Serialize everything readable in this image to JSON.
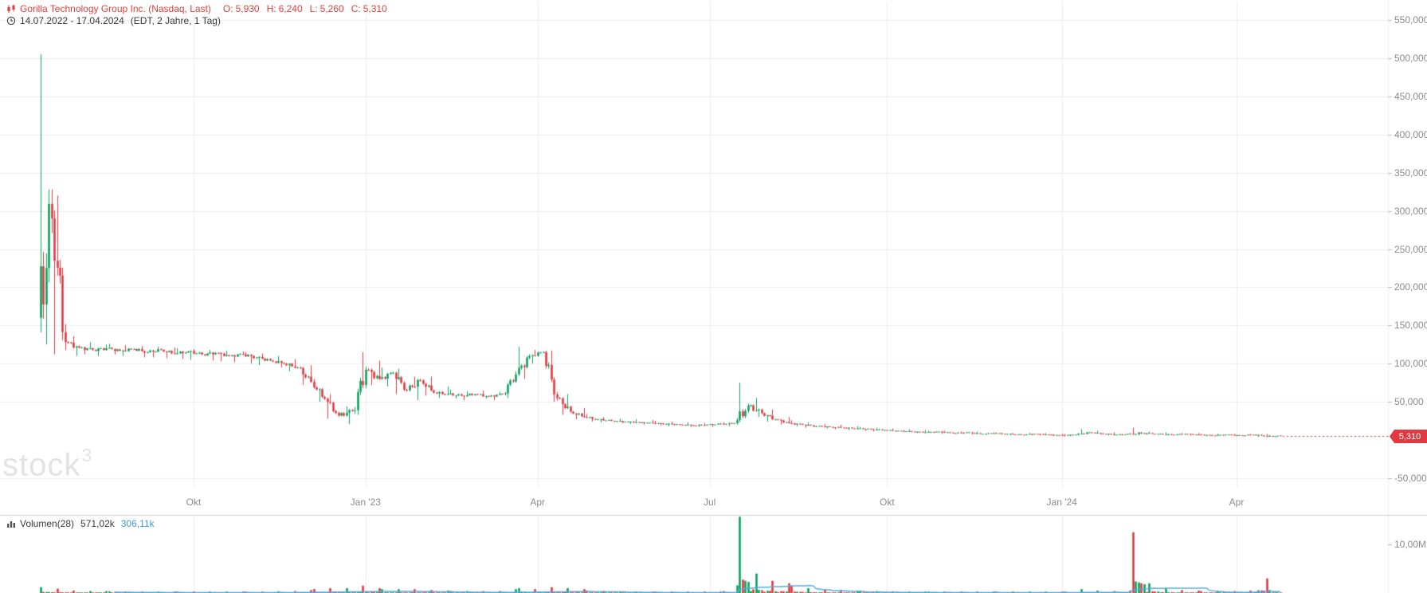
{
  "header": {
    "instrument": "Gorilla Technology Group Inc. (Nasdaq, Last)",
    "ohlc": [
      {
        "k": "O:",
        "v": "5,930"
      },
      {
        "k": "H:",
        "v": "6,240"
      },
      {
        "k": "L:",
        "v": "5,260"
      },
      {
        "k": "C:",
        "v": "5,310"
      }
    ],
    "date_range": "14.07.2022 - 17.04.2024",
    "timeframe": "(EDT, 2 Jahre, 1 Tag)"
  },
  "watermark": {
    "text": "stock",
    "sup": "3"
  },
  "price_axis": {
    "labels": [
      "550,000",
      "500,000",
      "450,000",
      "400,000",
      "350,000",
      "300,000",
      "250,000",
      "200,000",
      "150,000",
      "100,000",
      "50,000",
      "-50,000"
    ],
    "last_price": "5,310"
  },
  "volume_panel": {
    "label": "Volumen(28)",
    "value": "571,02k",
    "ma_value": "306,11k",
    "axis_label": "10,00M"
  },
  "icons": {
    "instrument": "candlestick-icon",
    "range": "clock-icon",
    "volume": "bar-chart-icon"
  },
  "colors": {
    "up": "#0ba05f",
    "down": "#e0393f",
    "last_price_badge": "#e0393f",
    "volume_ma_line": "#55aae2",
    "legend_instrument": "#e0403c",
    "ma_value_text": "#3d9bd5",
    "axis_text": "#8b8b8b",
    "grid": "#ededed",
    "separator": "#cfcfcf",
    "tick": "#b9b9b9"
  },
  "chart_data": {
    "type": "candlestick",
    "title": "Gorilla Technology Group Inc.",
    "exchange": "Nasdaq",
    "interval": "1 Tag",
    "timezone": "EDT",
    "range_label": "14.07.2022 - 17.04.2024",
    "start_date": "2022-07-14",
    "end_date": "2024-04-17",
    "grid": true,
    "legend_position": "top-left",
    "ylim_price": [
      -71000,
      576000
    ],
    "ylim_volume_millions": [
      0,
      16
    ],
    "volume_ma_period": 28,
    "units": {
      "price": "thousands",
      "volume": "millions"
    },
    "note": "weekly_ohlcv rows are [open, high, low, close, peakDailyVolume] read from the chart; renderer expands each week into 5 daily candles",
    "x_ticks": [
      {
        "label": "Okt",
        "day": 56
      },
      {
        "label": "Jan '23",
        "day": 119
      },
      {
        "label": "Apr",
        "day": 182
      },
      {
        "label": "Jul",
        "day": 245
      },
      {
        "label": "Okt",
        "day": 310
      },
      {
        "label": "Jan '24",
        "day": 374
      },
      {
        "label": "Apr",
        "day": 438
      }
    ],
    "last_candle": {
      "o": 5.93,
      "h": 6.24,
      "l": 5.26,
      "c": 5.31
    },
    "weekly_ohlcv": [
      [
        160,
        505,
        125,
        290,
        1.2
      ],
      [
        290,
        320,
        112,
        128,
        0.9
      ],
      [
        128,
        136,
        110,
        121,
        0.5
      ],
      [
        121,
        128,
        112,
        118,
        0.4
      ],
      [
        118,
        125,
        110,
        120,
        0.4
      ],
      [
        120,
        126,
        112,
        117,
        0.35
      ],
      [
        117,
        124,
        110,
        119,
        0.3
      ],
      [
        119,
        123,
        108,
        115,
        0.3
      ],
      [
        115,
        122,
        108,
        118,
        0.3
      ],
      [
        118,
        121,
        107,
        113,
        0.3
      ],
      [
        113,
        120,
        106,
        116,
        0.3
      ],
      [
        116,
        119,
        105,
        112,
        0.3
      ],
      [
        112,
        118,
        104,
        114,
        0.3
      ],
      [
        114,
        117,
        103,
        110,
        0.3
      ],
      [
        110,
        116,
        102,
        112,
        0.3
      ],
      [
        112,
        115,
        100,
        108,
        0.3
      ],
      [
        108,
        113,
        98,
        104,
        0.3
      ],
      [
        104,
        110,
        95,
        100,
        0.35
      ],
      [
        100,
        106,
        90,
        95,
        0.4
      ],
      [
        95,
        98,
        72,
        76,
        0.6
      ],
      [
        76,
        80,
        50,
        54,
        0.8
      ],
      [
        54,
        60,
        28,
        32,
        1.0
      ],
      [
        32,
        44,
        21,
        38,
        1.0
      ],
      [
        38,
        115,
        33,
        92,
        1.5
      ],
      [
        92,
        104,
        72,
        80,
        1.0
      ],
      [
        80,
        95,
        70,
        88,
        0.8
      ],
      [
        88,
        93,
        60,
        65,
        0.8
      ],
      [
        65,
        83,
        52,
        78,
        0.8
      ],
      [
        78,
        83,
        58,
        62,
        0.6
      ],
      [
        62,
        70,
        55,
        60,
        0.5
      ],
      [
        60,
        66,
        54,
        58,
        0.4
      ],
      [
        58,
        64,
        52,
        60,
        0.4
      ],
      [
        60,
        65,
        54,
        57,
        0.4
      ],
      [
        57,
        63,
        52,
        60,
        0.4
      ],
      [
        60,
        90,
        55,
        86,
        0.8
      ],
      [
        86,
        122,
        80,
        110,
        1.0
      ],
      [
        110,
        118,
        100,
        115,
        0.8
      ],
      [
        115,
        117,
        50,
        55,
        1.2
      ],
      [
        55,
        60,
        33,
        37,
        1.0
      ],
      [
        37,
        42,
        27,
        30,
        0.8
      ],
      [
        30,
        34,
        24,
        27,
        0.5
      ],
      [
        27,
        30,
        23,
        25,
        0.4
      ],
      [
        25,
        28,
        22,
        24,
        0.3
      ],
      [
        24,
        27,
        21,
        23,
        0.3
      ],
      [
        23,
        26,
        20,
        22,
        0.3
      ],
      [
        22,
        25,
        19,
        21,
        0.3
      ],
      [
        21,
        24,
        18,
        20,
        0.3
      ],
      [
        20,
        23,
        17,
        19,
        0.3
      ],
      [
        19,
        22,
        17,
        20,
        0.3
      ],
      [
        20,
        22,
        17,
        21,
        0.3
      ],
      [
        21,
        23,
        18,
        22,
        0.4
      ],
      [
        22,
        75,
        20,
        45,
        15.7
      ],
      [
        45,
        55,
        30,
        35,
        4.0
      ],
      [
        35,
        40,
        24,
        27,
        2.5
      ],
      [
        27,
        30,
        20,
        22,
        2.0
      ],
      [
        22,
        26,
        18,
        20,
        1.5
      ],
      [
        20,
        23,
        16,
        18,
        1.0
      ],
      [
        18,
        21,
        15,
        17,
        0.8
      ],
      [
        17,
        20,
        14,
        16,
        0.6
      ],
      [
        16,
        18,
        13,
        15,
        0.5
      ],
      [
        15,
        17,
        12,
        14,
        0.4
      ],
      [
        14,
        16,
        11,
        13,
        0.4
      ],
      [
        13,
        15,
        11,
        12,
        0.35
      ],
      [
        12,
        14,
        10,
        11,
        0.3
      ],
      [
        11,
        13,
        9,
        10,
        0.3
      ],
      [
        10,
        12,
        9,
        11,
        0.3
      ],
      [
        11,
        12,
        8,
        9,
        0.3
      ],
      [
        9,
        11,
        8,
        10,
        0.3
      ],
      [
        10,
        11,
        7,
        8,
        0.3
      ],
      [
        8,
        10,
        7,
        9,
        0.3
      ],
      [
        9,
        10,
        7,
        8,
        0.3
      ],
      [
        8,
        9,
        6,
        7,
        0.3
      ],
      [
        7,
        9,
        6,
        8,
        0.3
      ],
      [
        8,
        9,
        6,
        7,
        0.3
      ],
      [
        7,
        8,
        5,
        6,
        0.3
      ],
      [
        6,
        8,
        5,
        7,
        0.3
      ],
      [
        7,
        14,
        6,
        10,
        0.8
      ],
      [
        10,
        12,
        7,
        8,
        0.5
      ],
      [
        8,
        10,
        6,
        7,
        0.4
      ],
      [
        7,
        9,
        6,
        8,
        0.5
      ],
      [
        8,
        16,
        6,
        9,
        12.5
      ],
      [
        9,
        11,
        7,
        8,
        2.0
      ],
      [
        8,
        10,
        6,
        7,
        1.0
      ],
      [
        7,
        9,
        6,
        8,
        0.6
      ],
      [
        8,
        9,
        6,
        7,
        0.5
      ],
      [
        7,
        8,
        5,
        6,
        0.4
      ],
      [
        6,
        8,
        5,
        7,
        0.4
      ],
      [
        7,
        8,
        5,
        6,
        0.4
      ],
      [
        6,
        8,
        5,
        7,
        0.5
      ],
      [
        7,
        8,
        4,
        5,
        3.0
      ],
      [
        5,
        6.5,
        4.8,
        5.31,
        0.6
      ]
    ]
  }
}
